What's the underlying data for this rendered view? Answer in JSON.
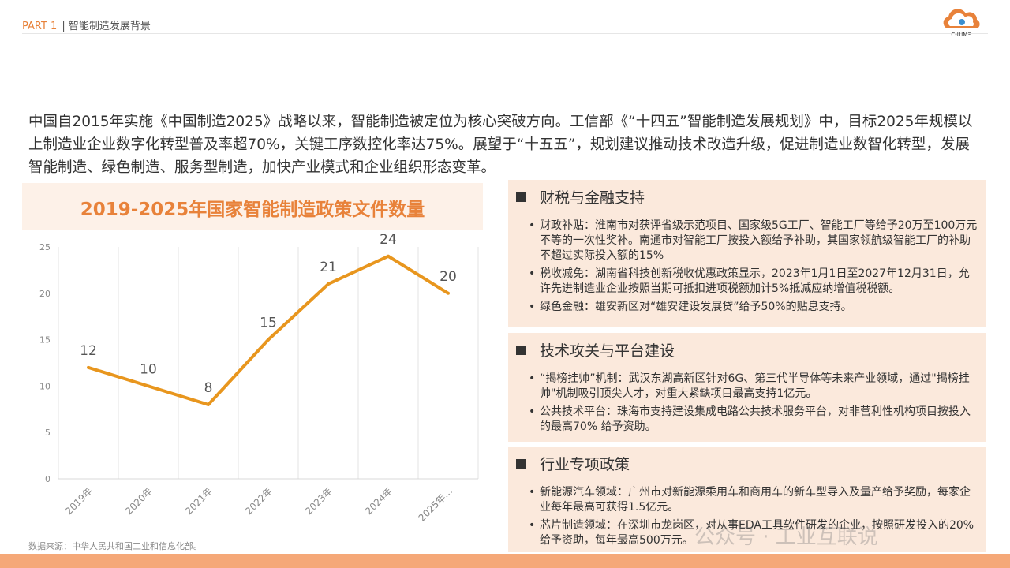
{
  "header": {
    "part": "PART 1",
    "title": "智能制造发展背景"
  },
  "logo": {
    "text": "C-WME"
  },
  "intro": "中国自2015年实施《中国制造2025》战略以来，智能制造被定位为核心突破方向。工信部《“十四五”智能制造发展规划》中，目标2025年规模以上制造业企业数字化转型普及率超70%，关键工序数控化率达75%。展望于“十五五”，规划建议推动技术改造升级，促进制造业数智化转型，发展智能制造、绿色制造、服务型制造，加快产业模式和企业组织形态变革。",
  "chart_data": {
    "type": "line",
    "title": "2019-2025年国家智能制造政策文件数量",
    "categories": [
      "2019年",
      "2020年",
      "2021年",
      "2022年",
      "2023年",
      "2024年",
      "2025年…"
    ],
    "values": [
      12,
      10,
      8,
      15,
      21,
      24,
      20
    ],
    "ylim": [
      0,
      25
    ],
    "yticks": [
      0,
      5,
      10,
      15,
      20,
      25
    ],
    "grid": "vertical",
    "color": "#e8961e"
  },
  "source": "数据来源：中华人民共和国工业和信息化部。",
  "sections": [
    {
      "title": "财税与金融支持",
      "items": [
        "财政补贴：淮南市对获评省级示范项目、国家级5G工厂、智能工厂等给予20万至100万元不等的一次性奖补。南通市对智能工厂按投入额给予补助，其国家领航级智能工厂的补助不超过实际投入额的15%",
        "税收减免：湖南省科技创新税收优惠政策显示，2023年1月1日至2027年12月31日，允许先进制造业企业按照当期可抵扣进项税额加计5%抵减应纳增值税税额。",
        "绿色金融：雄安新区对“雄安建设发展贷”给予50%的贴息支持。"
      ]
    },
    {
      "title": "技术攻关与平台建设",
      "items": [
        "“揭榜挂帅”机制：武汉东湖高新区针对6G、第三代半导体等未来产业领域，通过\"揭榜挂帅\"机制吸引顶尖人才，对重大紧缺项目最高支持1亿元。",
        "公共技术平台：珠海市支持建设集成电路公共技术服务平台，对非营利性机构项目按投入的最高70% 给予资助。"
      ]
    },
    {
      "title": "行业专项政策",
      "items": [
        "新能源汽车领域：广州市对新能源乘用车和商用车的新车型导入及量产给予奖励，每家企业每年最高可获得1.5亿元。",
        "芯片制造领域：在深圳市龙岗区，对从事EDA工具软件研发的企业，按照研发投入的20% 给予资助，每年最高500万元。"
      ]
    }
  ],
  "watermark": "公众号 · 工业互联说"
}
